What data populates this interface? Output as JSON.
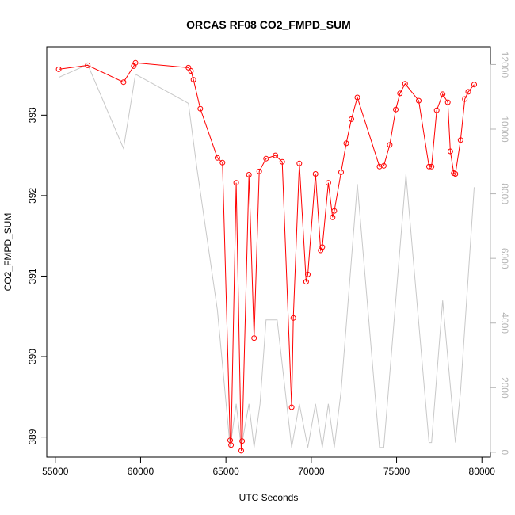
{
  "chart_data": {
    "type": "line",
    "title": "ORCAS RF08 CO2_FMPD_SUM",
    "xlabel": "UTC Seconds",
    "ylabel": "CO2_FMPD_SUM",
    "xlim": [
      54500,
      80500
    ],
    "ylim": [
      388.75,
      393.85
    ],
    "y2lim": [
      -150,
      12550
    ],
    "x_ticks": [
      55000,
      60000,
      65000,
      70000,
      75000,
      80000
    ],
    "y_ticks": [
      389,
      390,
      391,
      392,
      393
    ],
    "y2_ticks": [
      0,
      2000,
      4000,
      6000,
      8000,
      10000,
      12000
    ],
    "grid": false,
    "legend": "none",
    "series": [
      {
        "axis": "left",
        "color": "#ff0000",
        "marker": "open-circle",
        "x": [
          55200,
          56900,
          59000,
          59600,
          59700,
          62800,
          62950,
          63100,
          63500,
          64500,
          64800,
          65250,
          65300,
          65600,
          65900,
          65950,
          66350,
          66650,
          66950,
          67350,
          67900,
          68300,
          68850,
          68950,
          69300,
          69700,
          69800,
          70250,
          70550,
          70650,
          71000,
          71250,
          71350,
          71750,
          72050,
          72350,
          72700,
          74000,
          74250,
          74600,
          74950,
          75200,
          75500,
          76300,
          76900,
          77050,
          77350,
          77700,
          78000,
          78150,
          78350,
          78450,
          78750,
          79000,
          79200,
          79550
        ],
        "values": [
          393.57,
          393.62,
          393.41,
          393.61,
          393.65,
          393.59,
          393.55,
          393.44,
          393.08,
          392.47,
          392.41,
          388.96,
          388.9,
          392.16,
          388.83,
          388.95,
          392.26,
          390.23,
          392.3,
          392.46,
          392.5,
          392.42,
          389.37,
          390.48,
          392.4,
          390.93,
          391.02,
          392.27,
          391.32,
          391.36,
          392.16,
          391.73,
          391.81,
          392.29,
          392.65,
          392.95,
          393.22,
          392.36,
          392.37,
          392.63,
          393.07,
          393.27,
          393.39,
          393.18,
          392.36,
          392.36,
          393.06,
          393.26,
          393.16,
          392.55,
          392.28,
          392.27,
          392.69,
          393.2,
          393.29,
          393.38
        ]
      },
      {
        "axis": "right",
        "color": "#c8c8c8",
        "marker": "none",
        "x": [
          55200,
          56900,
          59000,
          59700,
          62800,
          63300,
          64500,
          65250,
          65600,
          65900,
          66350,
          66650,
          67000,
          67350,
          68000,
          68850,
          69300,
          69800,
          70250,
          70650,
          71000,
          71350,
          71750,
          72700,
          74000,
          74250,
          75550,
          76900,
          77050,
          77700,
          78450,
          78750,
          79550
        ],
        "values": [
          11600,
          12000,
          9400,
          11700,
          10800,
          8800,
          4400,
          150,
          1500,
          150,
          1500,
          150,
          1500,
          4100,
          4100,
          150,
          1500,
          150,
          1500,
          150,
          1500,
          150,
          1900,
          8300,
          150,
          150,
          8600,
          300,
          300,
          4700,
          300,
          1900,
          8200
        ]
      }
    ]
  }
}
